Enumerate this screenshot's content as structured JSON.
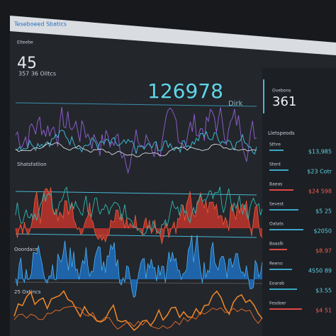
{
  "header": {
    "title": "Teseboeed Sbatics",
    "subtitle": "Elteebe"
  },
  "metrics": {
    "big": "45",
    "big_sub": "357 36 Olltcs",
    "main": "126978",
    "main_unit": "Dirk",
    "side": "361",
    "side_label": "Ovebons"
  },
  "sections": [
    "Shatsfatlion",
    "Ooordace",
    "25 Oxtincs"
  ],
  "sidebar": {
    "title": "Lletspeods",
    "items": [
      {
        "label": "Sthre",
        "value": "$13,985"
      },
      {
        "label": "Stent",
        "value": "$23 Cotr"
      },
      {
        "label": "Baeas",
        "value": "$24 598"
      },
      {
        "label": "Sevest",
        "value": "$5 25"
      },
      {
        "label": "Oatats",
        "value": "$2050"
      },
      {
        "label": "Baaslk",
        "value": "$8.97"
      },
      {
        "label": "Reeno",
        "value": "4S50 89"
      },
      {
        "label": "Eoarab",
        "value": "$3.55"
      },
      {
        "label": "Fesdoer",
        "value": "$4 51"
      }
    ]
  }
}
